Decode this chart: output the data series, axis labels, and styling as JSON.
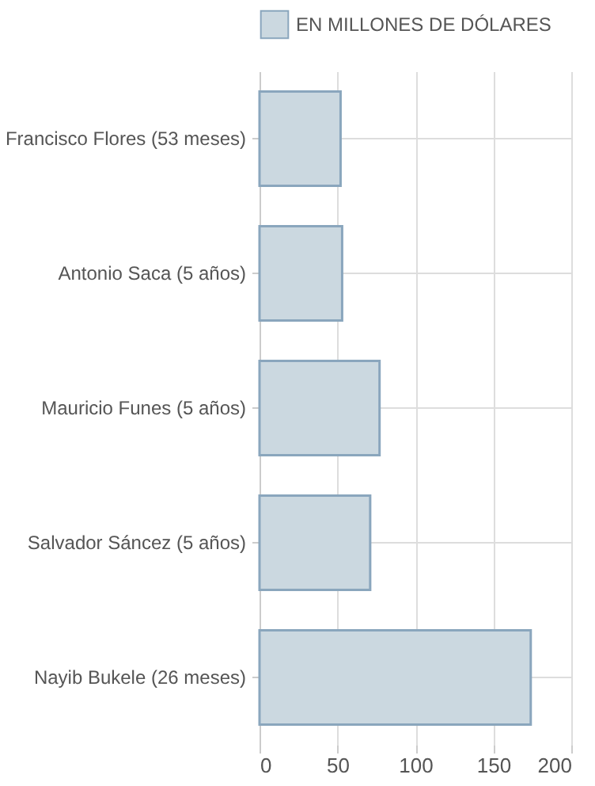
{
  "chart_data": {
    "type": "bar",
    "orientation": "horizontal",
    "categories": [
      "Francisco Flores (53 meses)",
      "Antonio Saca (5 años)",
      "Mauricio Funes (5 años)",
      "Salvador Sáncez (5 años)",
      "Nayib Bukele (26 meses)"
    ],
    "series": [
      {
        "name": "EN MILLONES DE DÓLARES",
        "color": "#cbd8e0",
        "values": [
          52,
          53,
          77,
          71,
          174
        ]
      }
    ],
    "xlim": [
      0,
      200
    ],
    "xticks": [
      0,
      50,
      100,
      150,
      200
    ],
    "grid": true,
    "legend": "top"
  }
}
